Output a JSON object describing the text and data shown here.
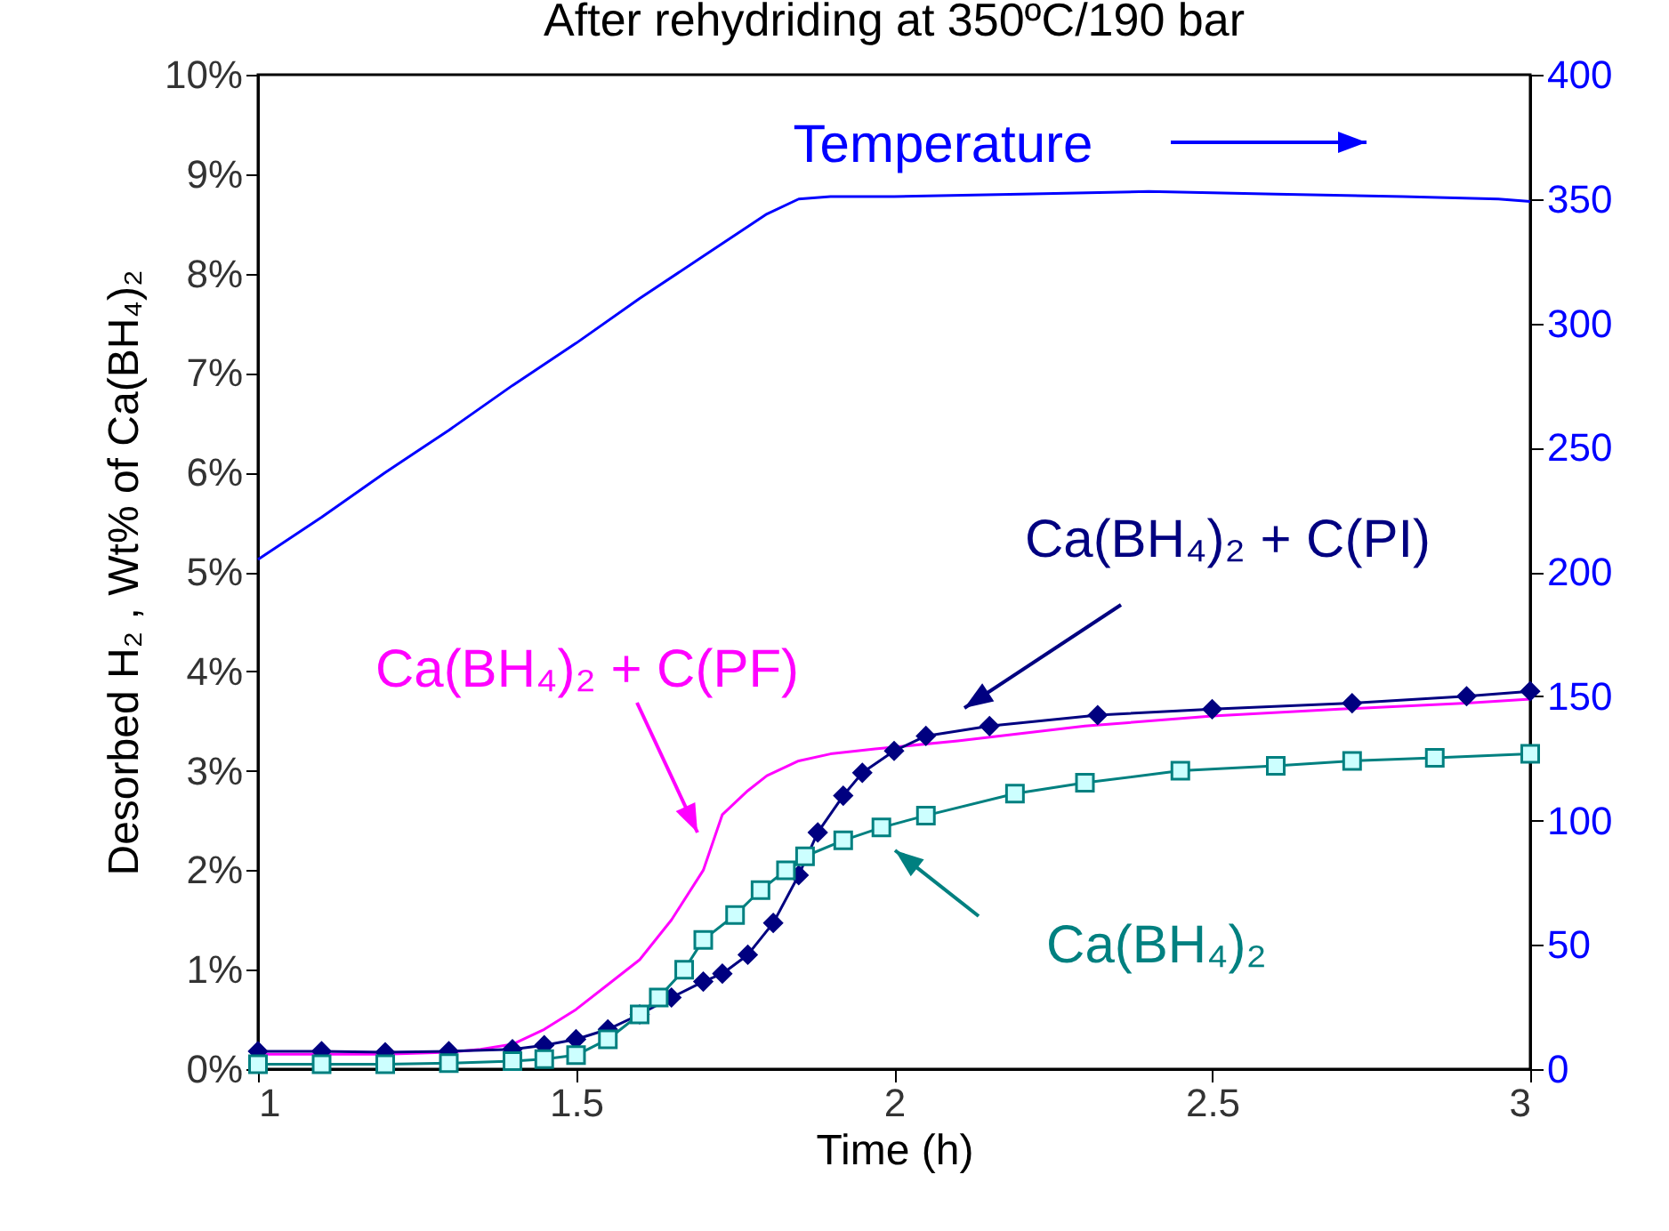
{
  "chart_data": {
    "type": "line",
    "title": "After rehydriding at 350ºC/190 bar",
    "xlabel": "Time (h)",
    "ylabel": "Desorbed H₂ , Wt% of Ca(BH₄)₂",
    "xlim": [
      1,
      3
    ],
    "xticks": [
      1,
      1.5,
      2,
      2.5,
      3
    ],
    "ylim": [
      0,
      10
    ],
    "yticks": [
      {
        "value": 0,
        "label": "0%"
      },
      {
        "value": 1,
        "label": "1%"
      },
      {
        "value": 2,
        "label": "2%"
      },
      {
        "value": 3,
        "label": "3%"
      },
      {
        "value": 4,
        "label": "4%"
      },
      {
        "value": 5,
        "label": "5%"
      },
      {
        "value": 6,
        "label": "6%"
      },
      {
        "value": 7,
        "label": "7%"
      },
      {
        "value": 8,
        "label": "8%"
      },
      {
        "value": 9,
        "label": "9%"
      },
      {
        "value": 10,
        "label": "10%"
      }
    ],
    "y2lim": [
      0,
      400
    ],
    "y2ticks": [
      0,
      50,
      100,
      150,
      200,
      250,
      300,
      350,
      400
    ],
    "grid": false,
    "series": [
      {
        "name": "Temperature",
        "color": "#0000ff",
        "axis": "y2",
        "marker": "none",
        "x": [
          1,
          1.1,
          1.2,
          1.3,
          1.4,
          1.5,
          1.6,
          1.7,
          1.8,
          1.85,
          1.9,
          2.0,
          2.2,
          2.4,
          2.6,
          2.8,
          2.95,
          3
        ],
        "values": [
          205,
          222,
          240,
          257,
          275,
          292,
          310,
          327,
          344,
          350,
          351,
          351,
          352,
          353,
          352,
          351,
          350,
          349
        ]
      },
      {
        "name": "Ca(BH₄)₂ + C(PF)",
        "color": "#ff00ff",
        "marker": "none",
        "x": [
          1,
          1.1,
          1.2,
          1.3,
          1.35,
          1.4,
          1.45,
          1.5,
          1.55,
          1.6,
          1.65,
          1.7,
          1.73,
          1.77,
          1.8,
          1.85,
          1.9,
          1.97,
          2.1,
          2.3,
          2.5,
          2.7,
          2.9,
          3
        ],
        "values": [
          0.15,
          0.15,
          0.15,
          0.17,
          0.2,
          0.25,
          0.4,
          0.6,
          0.85,
          1.1,
          1.5,
          2.0,
          2.56,
          2.8,
          2.95,
          3.1,
          3.17,
          3.22,
          3.3,
          3.45,
          3.55,
          3.62,
          3.68,
          3.72
        ]
      },
      {
        "name": "Ca(BH₄)₂ + C(PI)",
        "color": "#000080",
        "marker": "diamond",
        "x": [
          1,
          1.1,
          1.2,
          1.3,
          1.4,
          1.45,
          1.5,
          1.55,
          1.6,
          1.65,
          1.7,
          1.73,
          1.77,
          1.81,
          1.85,
          1.88,
          1.92,
          1.95,
          2.0,
          2.05,
          2.15,
          2.32,
          2.5,
          2.72,
          2.9,
          3
        ],
        "values": [
          0.18,
          0.18,
          0.17,
          0.18,
          0.2,
          0.24,
          0.3,
          0.4,
          0.55,
          0.72,
          0.88,
          0.96,
          1.15,
          1.47,
          1.95,
          2.38,
          2.75,
          2.98,
          3.2,
          3.35,
          3.45,
          3.56,
          3.62,
          3.68,
          3.75,
          3.8
        ]
      },
      {
        "name": "Ca(BH₄)₂",
        "color": "#008080",
        "marker": "square",
        "x": [
          1,
          1.1,
          1.2,
          1.3,
          1.4,
          1.45,
          1.5,
          1.55,
          1.6,
          1.63,
          1.67,
          1.7,
          1.75,
          1.79,
          1.83,
          1.86,
          1.92,
          1.98,
          2.05,
          2.19,
          2.3,
          2.45,
          2.6,
          2.72,
          2.85,
          3
        ],
        "values": [
          0.05,
          0.05,
          0.05,
          0.06,
          0.08,
          0.1,
          0.14,
          0.3,
          0.55,
          0.72,
          1.0,
          1.3,
          1.55,
          1.8,
          2.0,
          2.14,
          2.3,
          2.43,
          2.55,
          2.77,
          2.88,
          3.0,
          3.05,
          3.1,
          3.13,
          3.17
        ]
      }
    ]
  }
}
